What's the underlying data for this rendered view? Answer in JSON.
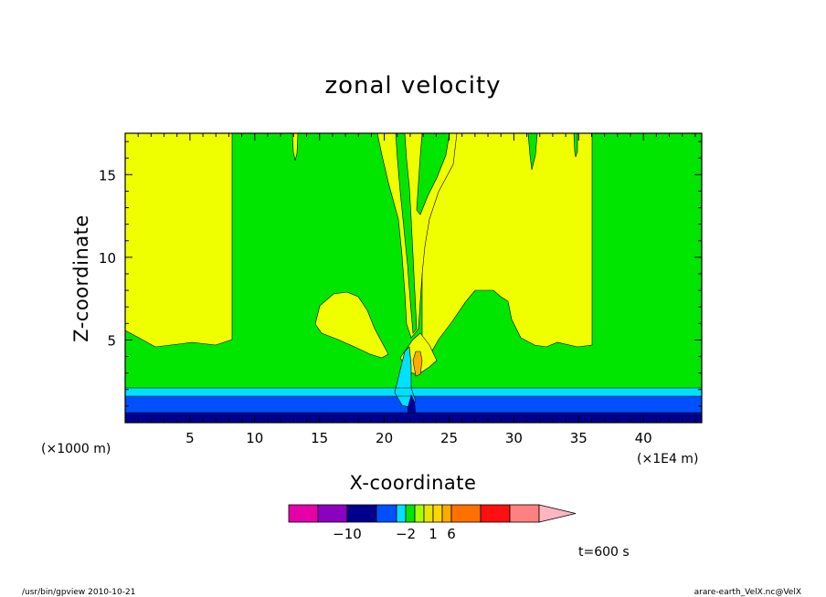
{
  "chart_data": {
    "type": "contour",
    "title": "zonal velocity",
    "xlabel": "X-coordinate",
    "ylabel": "Z-coordinate",
    "xlim": [
      0,
      44.5
    ],
    "ylim": [
      0,
      17.5
    ],
    "x_ticks": [
      5,
      10,
      15,
      20,
      25,
      30,
      35,
      40
    ],
    "y_ticks": [
      5,
      10,
      15
    ],
    "x_unit": "(×1E4 m)",
    "y_unit": "(×1000 m)",
    "time_label": "t=600 s",
    "colorbar": {
      "colors": [
        "#e600a8",
        "#8c00c0",
        "#00008c",
        "#0050ff",
        "#00e0ff",
        "#00e600",
        "#aaff00",
        "#e6e600",
        "#ffd700",
        "#ffaa00",
        "#ff7000",
        "#ff1010",
        "#ff8080",
        "#ffb6c1"
      ],
      "labels": [
        {
          "text": "−10",
          "after_index": 1
        },
        {
          "text": "−2",
          "after_index": 4
        },
        {
          "text": "1",
          "after_index": 7
        },
        {
          "text": "6",
          "after_index": 9
        }
      ]
    },
    "fill_colors": {
      "green": "#00e600",
      "yellow": "#f0ff00",
      "cyan": "#00e0ff",
      "blue": "#0050ff",
      "navy": "#00008c",
      "orange": "#ffaa00"
    }
  },
  "footer": {
    "left": "/usr/bin/gpview   2010-10-21",
    "right": "arare-earth_VelX.nc@VelX"
  }
}
